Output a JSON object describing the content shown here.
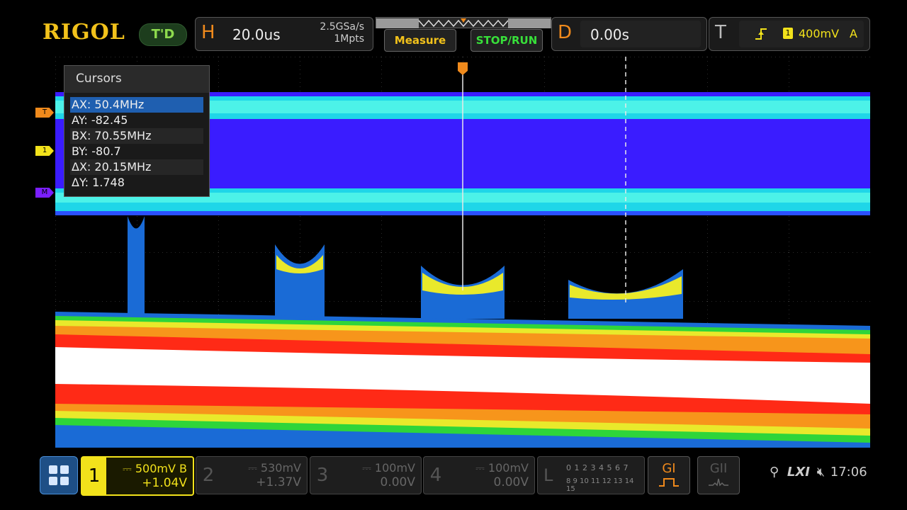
{
  "brand": {
    "logo": "RIGOL",
    "mode": "T'D"
  },
  "horizontal": {
    "letter": "H",
    "timebase": "20.0us",
    "sample_rate": "2.5GSa/s",
    "memory_depth": "1Mpts"
  },
  "buttons": {
    "measure": "Measure",
    "stop_run": "STOP/RUN"
  },
  "delay": {
    "letter": "D",
    "value": "0.00s"
  },
  "trigger": {
    "letter": "T",
    "source_badge": "1",
    "level": "400mV",
    "mode": "A"
  },
  "cursors": {
    "title": "Cursors",
    "rows": [
      {
        "label": "AX:",
        "value": "50.4MHz"
      },
      {
        "label": "AY:",
        "value": "-82.45"
      },
      {
        "label": "BX:",
        "value": "70.55MHz"
      },
      {
        "label": "BY:",
        "value": "-80.7"
      },
      {
        "label": "ΔX:",
        "value": "20.15MHz"
      },
      {
        "label": "ΔY:",
        "value": "1.748"
      }
    ],
    "selected_index": 0
  },
  "markers": {
    "trigger": "T",
    "ch1": "1",
    "math": "M"
  },
  "channels": [
    {
      "num": "1",
      "scale": "500mV",
      "flag": "B",
      "offset": "+1.04V",
      "active": true
    },
    {
      "num": "2",
      "scale": "530mV",
      "flag": "",
      "offset": "+1.37V",
      "active": false
    },
    {
      "num": "3",
      "scale": "100mV",
      "flag": "",
      "offset": "0.00V",
      "active": false
    },
    {
      "num": "4",
      "scale": "100mV",
      "flag": "",
      "offset": "0.00V",
      "active": false
    }
  ],
  "logic": {
    "letter": "L",
    "row1": "0 1 2 3  4 5 6 7",
    "row2": "8 9 10 11 12 13 14 15"
  },
  "generators": {
    "g1": "GI",
    "g2": "GII"
  },
  "status": {
    "lxi": "LXI",
    "time": "17:06"
  },
  "colors": {
    "accent": "#f2c21b",
    "ch1": "#f2e21b",
    "run": "#38e03a",
    "trigger": "#f08a1c",
    "math_band": "#3a1cff"
  }
}
